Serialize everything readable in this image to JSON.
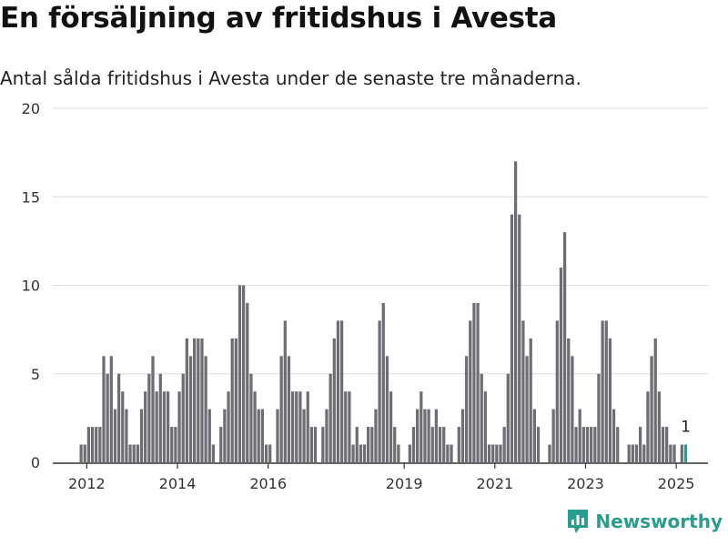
{
  "title": "En försäljning av fritidshus i Avesta",
  "subtitle": "Antal sålda fritidshus i Avesta under de senaste tre månaderna.",
  "brand": {
    "name": "Newsworthy",
    "icon": "bar-chart-pin-icon",
    "color": "#2a9d8f"
  },
  "colors": {
    "bar": "#6e6d73",
    "highlight": "#2a9d8f",
    "grid": "#dddddd",
    "axis": "#333333"
  },
  "chart_data": {
    "type": "bar",
    "ylim": [
      0,
      20
    ],
    "yticks": [
      0,
      5,
      10,
      15,
      20
    ],
    "xlim": [
      2011.25,
      2025.7
    ],
    "xticks": [
      2012,
      2014,
      2016,
      2019,
      2021,
      2023,
      2025
    ],
    "grid": true,
    "start_month": "2011-11",
    "values": [
      1,
      1,
      2,
      2,
      2,
      2,
      6,
      5,
      6,
      3,
      5,
      4,
      3,
      1,
      1,
      1,
      3,
      4,
      5,
      6,
      4,
      5,
      4,
      4,
      2,
      2,
      4,
      5,
      7,
      6,
      7,
      7,
      7,
      6,
      3,
      1,
      0,
      2,
      3,
      4,
      7,
      7,
      10,
      10,
      9,
      5,
      4,
      3,
      3,
      1,
      1,
      0,
      3,
      6,
      8,
      6,
      4,
      4,
      4,
      3,
      4,
      2,
      2,
      0,
      2,
      3,
      5,
      7,
      8,
      8,
      4,
      4,
      1,
      2,
      1,
      1,
      2,
      2,
      3,
      8,
      9,
      6,
      4,
      2,
      1,
      0,
      0,
      1,
      2,
      3,
      4,
      3,
      3,
      2,
      3,
      2,
      2,
      1,
      1,
      0,
      2,
      3,
      6,
      8,
      9,
      9,
      5,
      4,
      1,
      1,
      1,
      1,
      2,
      5,
      14,
      17,
      14,
      8,
      6,
      7,
      3,
      2,
      0,
      0,
      1,
      3,
      8,
      11,
      13,
      7,
      6,
      2,
      3,
      2,
      2,
      2,
      2,
      5,
      8,
      8,
      7,
      3,
      2,
      0,
      0,
      1,
      1,
      1,
      2,
      1,
      4,
      6,
      7,
      4,
      2,
      2,
      1,
      1,
      0,
      1,
      1
    ],
    "highlight_last": true,
    "last_label": "1"
  }
}
